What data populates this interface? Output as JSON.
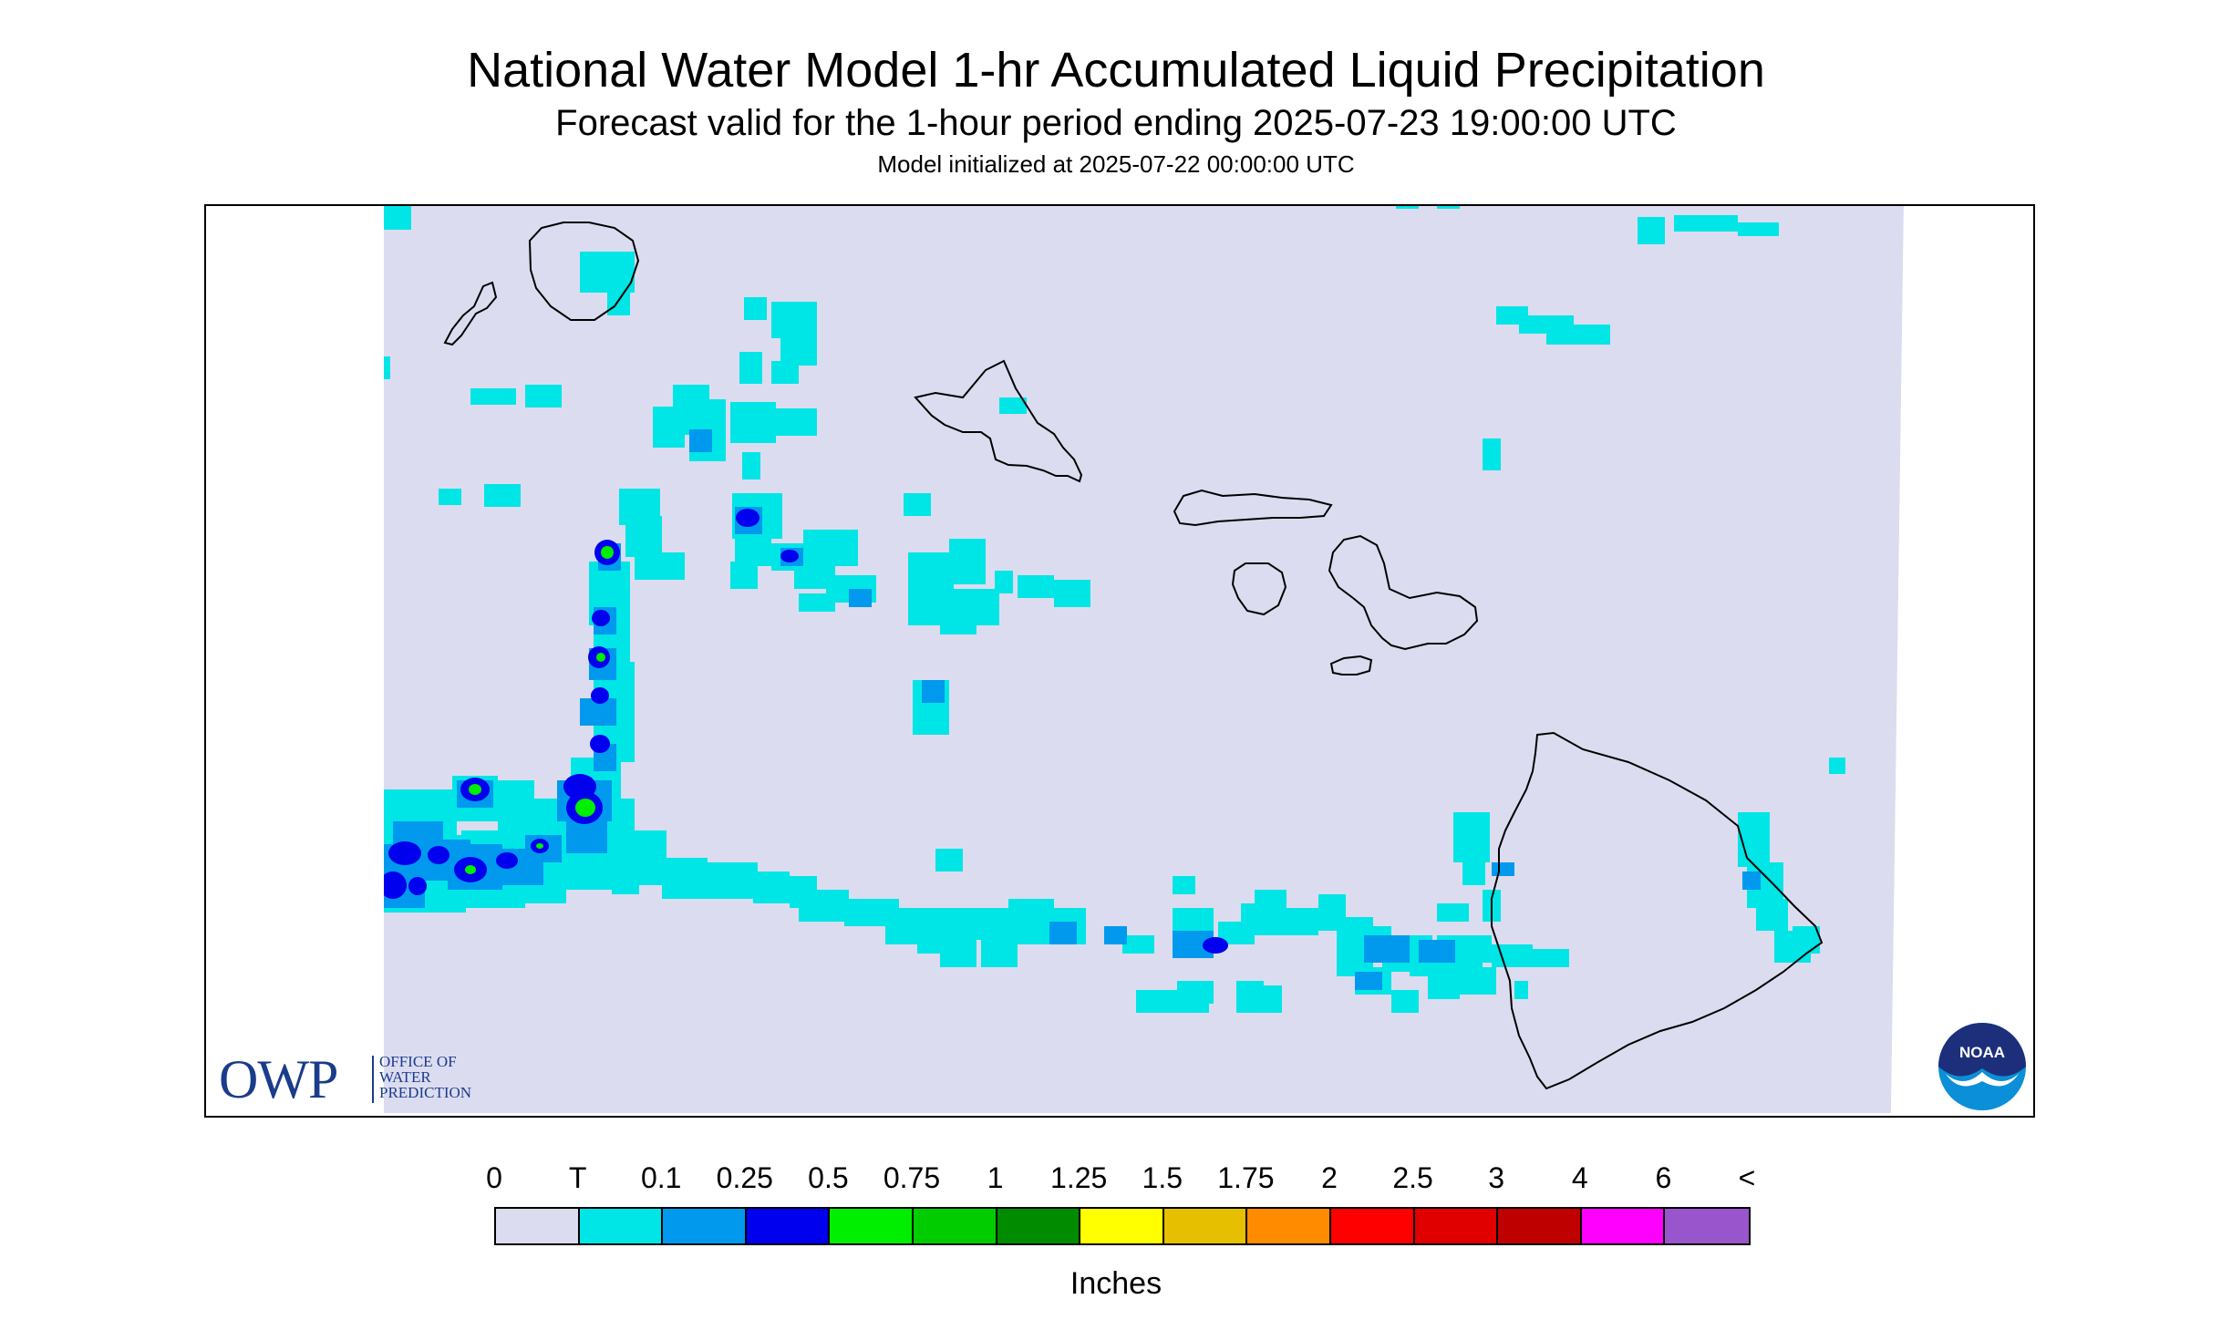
{
  "header": {
    "title": "National Water Model 1-hr Accumulated Liquid Precipitation",
    "subtitle": "Forecast valid for the 1-hour period ending 2025-07-23 19:00:00 UTC",
    "init_text": "Model initialized at 2025-07-22 00:00:00 UTC"
  },
  "map": {
    "background_color": "#dcdcf0",
    "outside_color": "#ffffff",
    "coastline_color": "#000000",
    "islands": [
      "Niihau",
      "Kauai",
      "Oahu",
      "Molokai",
      "Lanai",
      "Maui",
      "Kahoolawe",
      "Hawaii"
    ],
    "precip_colors": {
      "trace": "#00e5e5",
      "0.1": "#0099ee",
      "0.25": "#0000ee",
      "0.5": "#00ee00"
    }
  },
  "logos": {
    "owp": {
      "letters": "OWP",
      "line1": "OFFICE OF",
      "line2": "WATER",
      "line3": "PREDICTION"
    },
    "noaa": {
      "text": "NOAA",
      "icon": "noaa-seagull-logo"
    }
  },
  "legend": {
    "labels": [
      "0",
      "T",
      "0.1",
      "0.25",
      "0.5",
      "0.75",
      "1",
      "1.25",
      "1.5",
      "1.75",
      "2",
      "2.5",
      "3",
      "4",
      "6",
      "<"
    ],
    "colors": [
      "#dcdcf0",
      "#00e5e5",
      "#0099ee",
      "#0000ee",
      "#00ee00",
      "#00cc00",
      "#008b00",
      "#ffff00",
      "#e5bf00",
      "#ff8c00",
      "#ff0000",
      "#e00000",
      "#bf0000",
      "#ff00ff",
      "#9955cc"
    ],
    "units": "Inches"
  }
}
